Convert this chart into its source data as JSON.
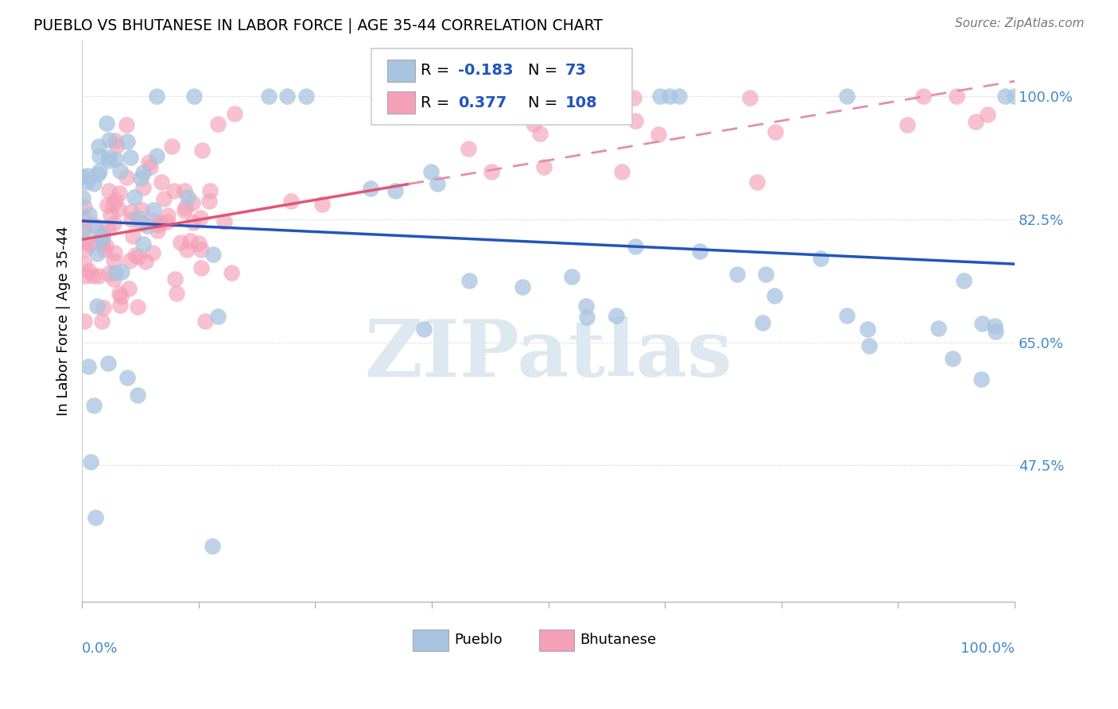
{
  "title": "PUEBLO VS BHUTANESE IN LABOR FORCE | AGE 35-44 CORRELATION CHART",
  "source_text": "Source: ZipAtlas.com",
  "ylabel": "In Labor Force | Age 35-44",
  "ytick_values": [
    1.0,
    0.825,
    0.65,
    0.475
  ],
  "legend_pueblo_R": "-0.183",
  "legend_pueblo_N": "73",
  "legend_bhutanese_R": "0.377",
  "legend_bhutanese_N": "108",
  "pueblo_color": "#a8c4e0",
  "bhutanese_color": "#f4a0b8",
  "pueblo_line_color": "#2255bb",
  "bhutanese_line_solid_color": "#e05575",
  "bhutanese_line_dashed_color": "#e090a8",
  "watermark_text": "ZIPatlas",
  "background_color": "#ffffff",
  "grid_color": "#cccccc",
  "xlim": [
    0.0,
    1.0
  ],
  "ylim": [
    0.28,
    1.08
  ],
  "pueblo_seed": 12,
  "bhutanese_seed": 7
}
